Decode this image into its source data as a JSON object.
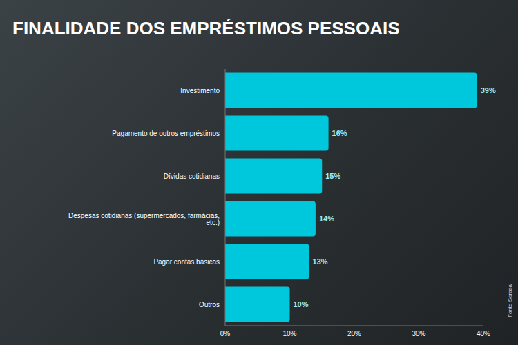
{
  "chart_data": {
    "type": "bar",
    "title": "FINALIDADE DOS EMPRÉSTIMOS PESSOAIS",
    "orientation": "horizontal",
    "categories": [
      "Investimento",
      "Pagamento de outros empréstimos",
      "Dívidas cotidianas",
      "Despesas cotidianas (supermercados, farmácias, etc.)",
      "Pagar contas básicas",
      "Outros"
    ],
    "values": [
      39,
      16,
      15,
      14,
      13,
      10
    ],
    "value_labels": [
      "39%",
      "16%",
      "15%",
      "14%",
      "13%",
      "10%"
    ],
    "data_labels": true,
    "color": "#00c8dc",
    "xlim": [
      0,
      40
    ],
    "xticks": [
      {
        "value": 0,
        "label": "0%"
      },
      {
        "value": 10,
        "label": "10%"
      },
      {
        "value": 20,
        "label": "20%"
      },
      {
        "value": 30,
        "label": "30%"
      },
      {
        "value": 40,
        "label": "40%"
      }
    ],
    "grid": false,
    "annotations": [
      "Fonte Serasa"
    ]
  }
}
